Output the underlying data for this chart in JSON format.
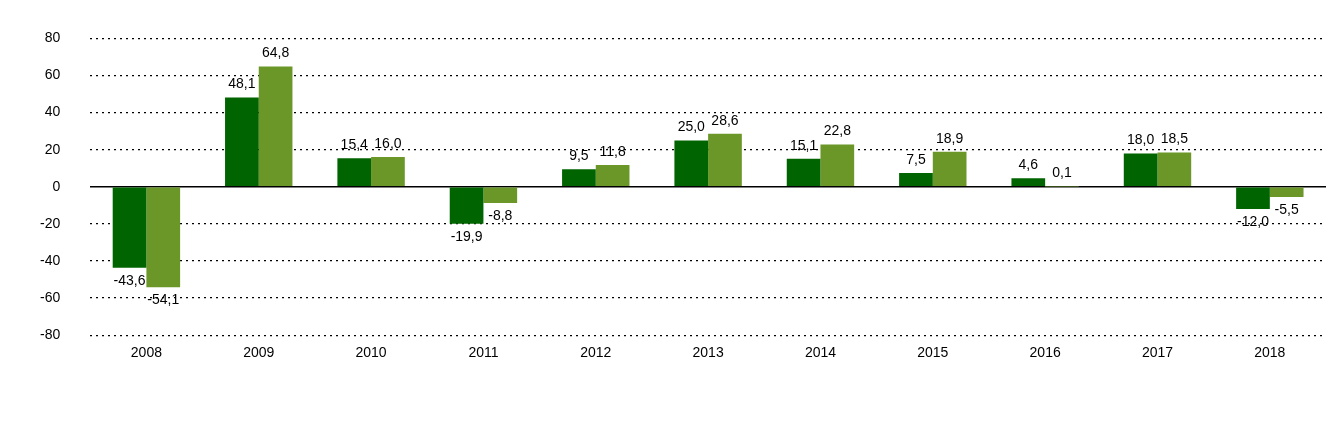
{
  "chart_data": {
    "type": "bar",
    "categories": [
      "2008",
      "2009",
      "2010",
      "2011",
      "2012",
      "2013",
      "2014",
      "2015",
      "2016",
      "2017",
      "2018"
    ],
    "series": [
      {
        "color": "#006400",
        "values": [
          -43.6,
          48.1,
          15.4,
          -19.9,
          9.5,
          25.0,
          15.1,
          7.5,
          4.6,
          18.0,
          -12.0
        ],
        "value_labels": [
          "-43,6",
          "48,1",
          "15,4",
          "-19,9",
          "9,5",
          "25,0",
          "15,1",
          "7,5",
          "4,6",
          "18,0",
          "-12,0"
        ]
      },
      {
        "color": "#6b9628",
        "values": [
          -54.1,
          64.8,
          16.0,
          -8.8,
          11.8,
          28.6,
          22.8,
          18.9,
          0.1,
          18.5,
          -5.5
        ],
        "value_labels": [
          "-54,1",
          "64,8",
          "16,0",
          "-8,8",
          "11,8",
          "28,6",
          "22,8",
          "18,9",
          "0,1",
          "18,5",
          "-5,5"
        ]
      }
    ],
    "ylim": [
      -80,
      80
    ],
    "yticks": [
      -80,
      -60,
      -40,
      -20,
      0,
      20,
      40,
      60,
      80
    ],
    "grid": "y",
    "legend": false
  }
}
